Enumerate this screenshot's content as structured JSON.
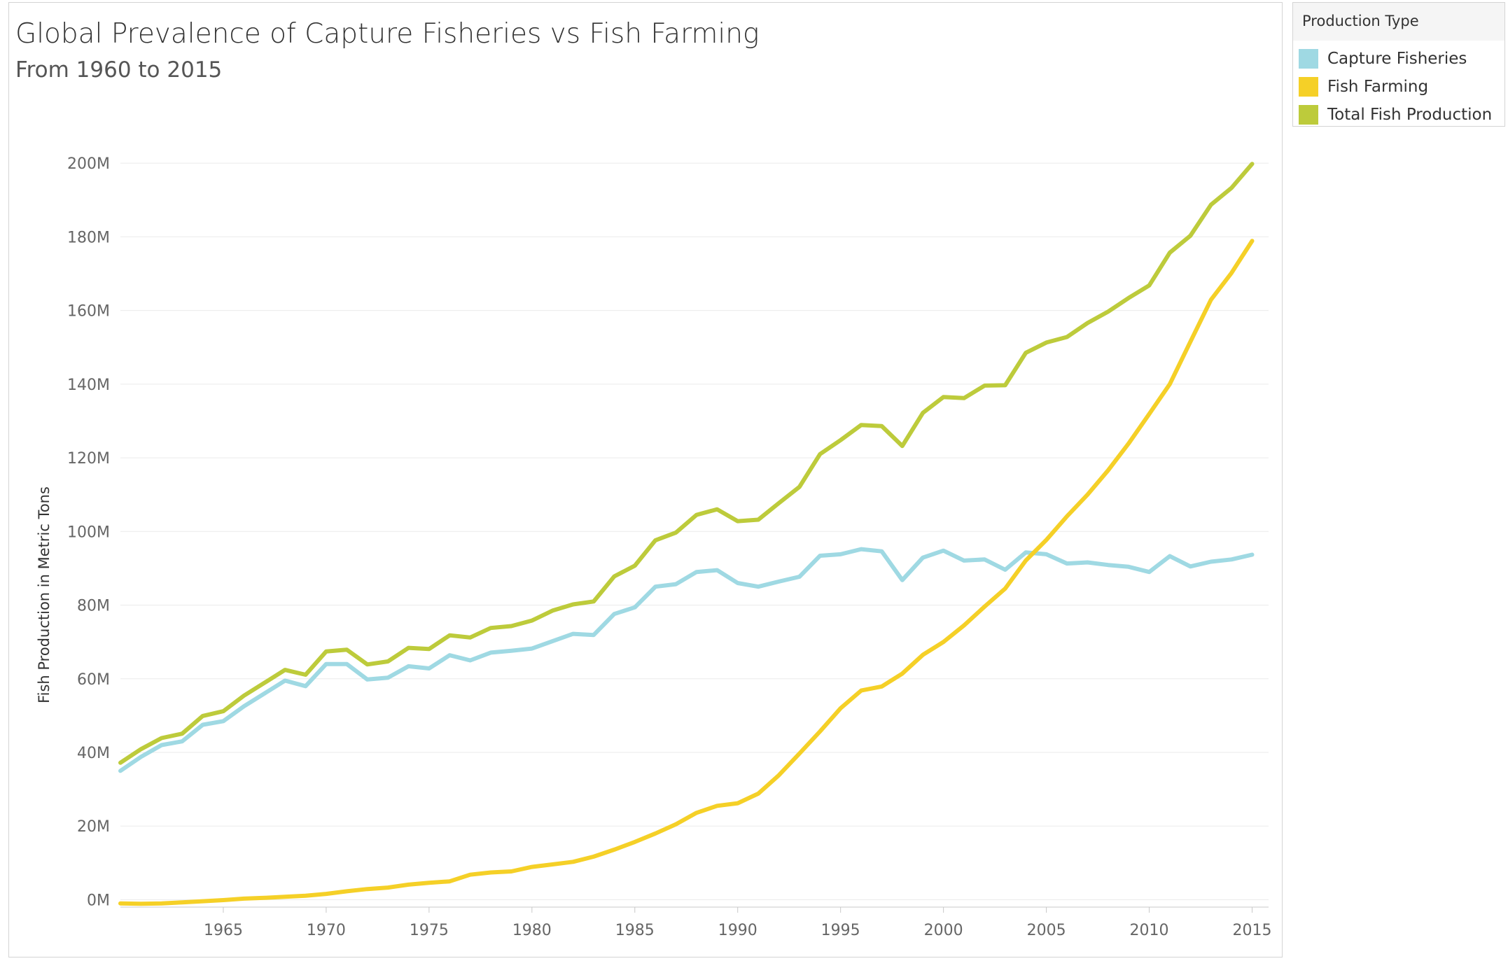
{
  "chart_data": {
    "type": "line",
    "title": "Global Prevalence of Capture Fisheries vs Fish Farming",
    "subtitle": "From 1960 to 2015",
    "xlabel": "",
    "ylabel": "Fish Production in Metric Tons",
    "x": [
      1960,
      1961,
      1962,
      1963,
      1964,
      1965,
      1966,
      1967,
      1968,
      1969,
      1970,
      1971,
      1972,
      1973,
      1974,
      1975,
      1976,
      1977,
      1978,
      1979,
      1980,
      1981,
      1982,
      1983,
      1984,
      1985,
      1986,
      1987,
      1988,
      1989,
      1990,
      1991,
      1992,
      1993,
      1994,
      1995,
      1996,
      1997,
      1998,
      1999,
      2000,
      2001,
      2002,
      2003,
      2004,
      2005,
      2006,
      2007,
      2008,
      2009,
      2010,
      2011,
      2012,
      2013,
      2014,
      2015
    ],
    "xlim": [
      1960,
      2015.8
    ],
    "ylim": [
      -2000000,
      212000000
    ],
    "x_ticks": [
      1965,
      1970,
      1975,
      1980,
      1985,
      1990,
      1995,
      2000,
      2005,
      2010,
      2015
    ],
    "x_tick_labels": [
      "1965",
      "1970",
      "1975",
      "1980",
      "1985",
      "1990",
      "1995",
      "2000",
      "2005",
      "2010",
      "2015"
    ],
    "y_ticks": [
      0,
      20000000,
      40000000,
      60000000,
      80000000,
      100000000,
      120000000,
      140000000,
      160000000,
      180000000,
      200000000
    ],
    "y_tick_labels": [
      "0M",
      "20M",
      "40M",
      "60M",
      "80M",
      "100M",
      "120M",
      "140M",
      "160M",
      "180M",
      "200M"
    ],
    "grid": true,
    "legend_title": "Production Type",
    "legend_position": "top-right",
    "series": [
      {
        "name": "Capture Fisheries",
        "color": "#9fd9e3",
        "values": [
          35000000,
          38800000,
          42000000,
          43000000,
          47500000,
          48500000,
          52500000,
          56000000,
          59500000,
          58000000,
          64000000,
          64000000,
          59800000,
          60300000,
          63400000,
          62800000,
          66400000,
          65000000,
          67100000,
          67600000,
          68200000,
          70200000,
          72200000,
          71900000,
          77600000,
          79400000,
          85000000,
          85700000,
          89000000,
          89500000,
          86000000,
          85000000,
          86400000,
          87700000,
          93400000,
          93800000,
          95200000,
          94600000,
          86800000,
          92900000,
          94800000,
          92100000,
          92400000,
          89600000,
          94300000,
          93800000,
          91300000,
          91600000,
          90900000,
          90400000,
          89000000,
          93300000,
          90500000,
          91800000,
          92400000,
          93700000
        ]
      },
      {
        "name": "Fish Farming",
        "color": "#f5d027",
        "values": [
          -1000000,
          -1100000,
          -1000000,
          -700000,
          -400000,
          -100000,
          300000,
          500000,
          800000,
          1100000,
          1600000,
          2300000,
          2900000,
          3300000,
          4100000,
          4600000,
          5000000,
          6800000,
          7400000,
          7700000,
          8900000,
          9600000,
          10300000,
          11700000,
          13600000,
          15700000,
          18000000,
          20500000,
          23600000,
          25500000,
          26200000,
          28800000,
          33800000,
          39700000,
          45700000,
          52000000,
          56800000,
          57900000,
          61400000,
          66500000,
          70000000,
          74500000,
          79600000,
          84500000,
          92100000,
          97700000,
          104100000,
          110000000,
          116600000,
          123900000,
          131900000,
          140000000,
          151500000,
          162900000,
          170200000,
          178900000
        ]
      },
      {
        "name": "Total Fish Production",
        "color": "#bdcb3b",
        "values": [
          37200000,
          40900000,
          43900000,
          45100000,
          49900000,
          51200000,
          55400000,
          58900000,
          62400000,
          61100000,
          67400000,
          67900000,
          63900000,
          64700000,
          68400000,
          68100000,
          71800000,
          71200000,
          73800000,
          74300000,
          75800000,
          78500000,
          80200000,
          81000000,
          87800000,
          90700000,
          97600000,
          99700000,
          104500000,
          106000000,
          102800000,
          103200000,
          107700000,
          112100000,
          121000000,
          124800000,
          128900000,
          128600000,
          123200000,
          132200000,
          136500000,
          136200000,
          139600000,
          139700000,
          148500000,
          151300000,
          152800000,
          156600000,
          159700000,
          163400000,
          166800000,
          175700000,
          180300000,
          188700000,
          193300000,
          199800000
        ]
      }
    ]
  }
}
